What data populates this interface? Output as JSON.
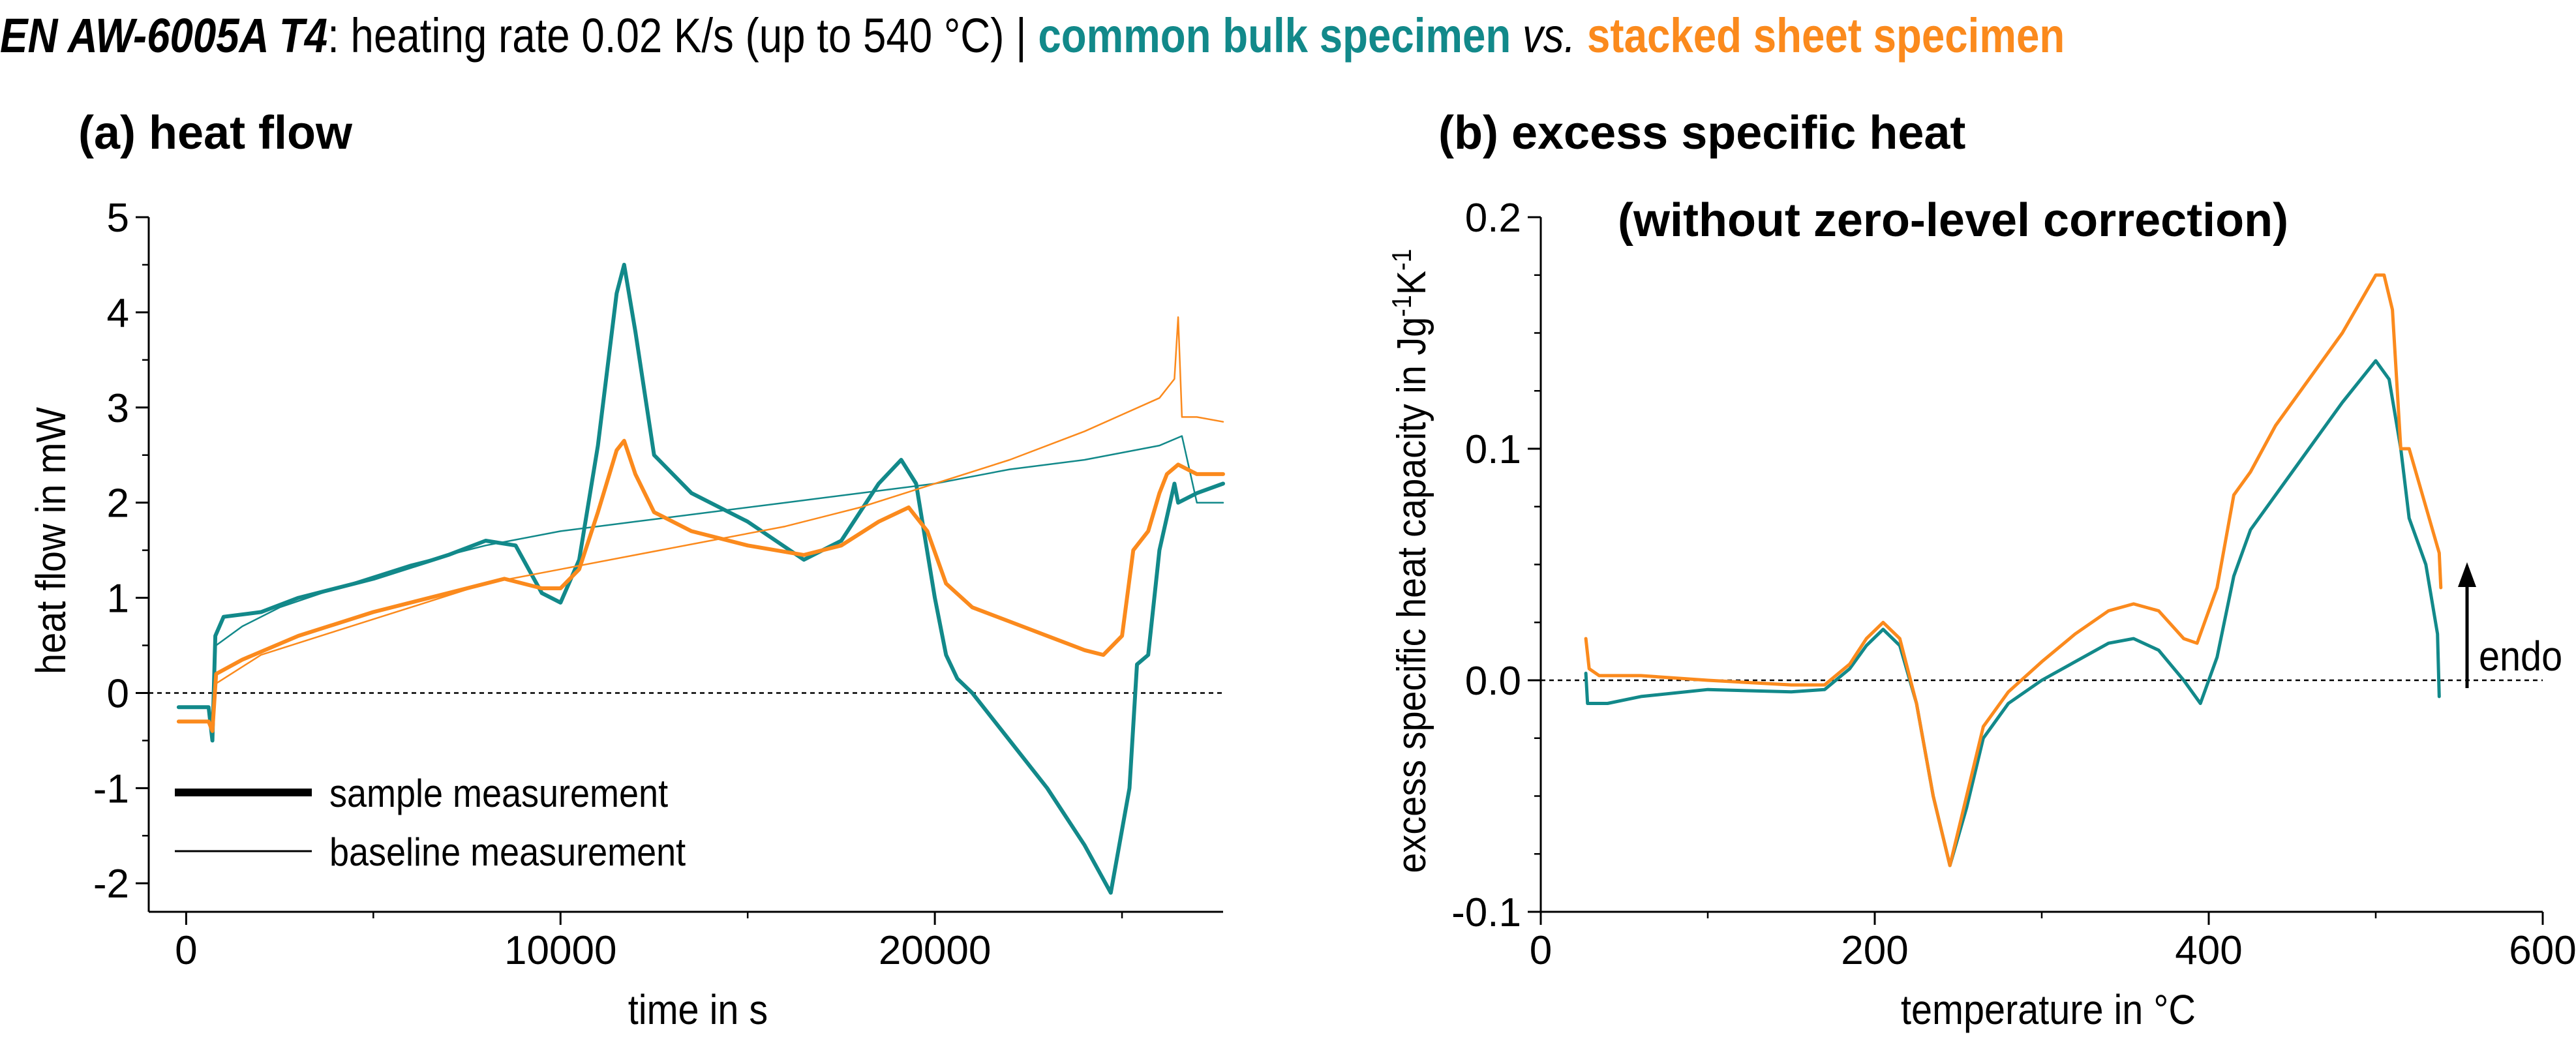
{
  "title": {
    "alloy": "EN AW-6005A T4",
    "desc": ": heating rate 0.02 K/s (up to 540 °C) | ",
    "bulk": "common bulk specimen",
    "vs": " vs. ",
    "sheet": "stacked sheet specimen"
  },
  "colors": {
    "bulk": "#12898a",
    "sheet": "#fb8a1d",
    "zero_line": "#000000"
  },
  "chart_data": [
    {
      "type": "line",
      "panel_title": "(a) heat flow",
      "xlabel": "time in s",
      "ylabel": "heat flow in mW",
      "xlim": [
        -1000,
        27700
      ],
      "ylim": [
        -2.3,
        5
      ],
      "xticks": [
        0,
        10000,
        20000
      ],
      "yticks": [
        -2,
        -1,
        0,
        1,
        2,
        3,
        4,
        5
      ],
      "reference_line": 0,
      "legend": [
        {
          "label": "sample measurement",
          "style": "thick"
        },
        {
          "label": "baseline measurement",
          "style": "thin"
        }
      ],
      "legend_position": "bottom-left",
      "series": [
        {
          "name": "bulk sample measurement",
          "color_key": "bulk",
          "width": 6,
          "points": [
            [
              -200,
              -0.15
            ],
            [
              600,
              -0.15
            ],
            [
              700,
              -0.5
            ],
            [
              780,
              0.6
            ],
            [
              1000,
              0.8
            ],
            [
              2000,
              0.85
            ],
            [
              3000,
              1.0
            ],
            [
              5000,
              1.2
            ],
            [
              7000,
              1.45
            ],
            [
              8000,
              1.6
            ],
            [
              8800,
              1.55
            ],
            [
              9500,
              1.05
            ],
            [
              10000,
              0.95
            ],
            [
              10500,
              1.4
            ],
            [
              11000,
              2.6
            ],
            [
              11500,
              4.2
            ],
            [
              11700,
              4.5
            ],
            [
              12000,
              3.8
            ],
            [
              12500,
              2.5
            ],
            [
              13500,
              2.1
            ],
            [
              15000,
              1.8
            ],
            [
              16500,
              1.4
            ],
            [
              17500,
              1.6
            ],
            [
              18500,
              2.2
            ],
            [
              19100,
              2.45
            ],
            [
              19500,
              2.2
            ],
            [
              20000,
              1.0
            ],
            [
              20300,
              0.4
            ],
            [
              20600,
              0.15
            ],
            [
              21000,
              0.0
            ],
            [
              22000,
              -0.5
            ],
            [
              23000,
              -1.0
            ],
            [
              24000,
              -1.6
            ],
            [
              24700,
              -2.1
            ],
            [
              25200,
              -1.0
            ],
            [
              25400,
              0.3
            ],
            [
              25700,
              0.4
            ],
            [
              26000,
              1.5
            ],
            [
              26400,
              2.2
            ],
            [
              26500,
              2.0
            ],
            [
              27000,
              2.1
            ],
            [
              27700,
              2.2
            ]
          ]
        },
        {
          "name": "bulk baseline measurement",
          "color_key": "bulk",
          "width": 2.5,
          "points": [
            [
              700,
              -0.4
            ],
            [
              800,
              0.5
            ],
            [
              1500,
              0.7
            ],
            [
              2500,
              0.9
            ],
            [
              4000,
              1.1
            ],
            [
              6000,
              1.35
            ],
            [
              8000,
              1.55
            ],
            [
              10000,
              1.7
            ],
            [
              12000,
              1.8
            ],
            [
              14000,
              1.9
            ],
            [
              16000,
              2.0
            ],
            [
              18000,
              2.1
            ],
            [
              20000,
              2.2
            ],
            [
              22000,
              2.35
            ],
            [
              24000,
              2.45
            ],
            [
              26000,
              2.6
            ],
            [
              26600,
              2.7
            ],
            [
              27000,
              2.0
            ],
            [
              27700,
              2.0
            ]
          ]
        },
        {
          "name": "sheet sample measurement",
          "color_key": "sheet",
          "width": 6,
          "points": [
            [
              -200,
              -0.3
            ],
            [
              600,
              -0.3
            ],
            [
              700,
              -0.4
            ],
            [
              800,
              0.2
            ],
            [
              1500,
              0.35
            ],
            [
              3000,
              0.6
            ],
            [
              5000,
              0.85
            ],
            [
              7000,
              1.05
            ],
            [
              8500,
              1.2
            ],
            [
              9500,
              1.1
            ],
            [
              10000,
              1.1
            ],
            [
              10500,
              1.3
            ],
            [
              11000,
              1.9
            ],
            [
              11500,
              2.55
            ],
            [
              11700,
              2.65
            ],
            [
              12000,
              2.3
            ],
            [
              12500,
              1.9
            ],
            [
              13500,
              1.7
            ],
            [
              15000,
              1.55
            ],
            [
              16500,
              1.45
            ],
            [
              17500,
              1.55
            ],
            [
              18500,
              1.8
            ],
            [
              19300,
              1.95
            ],
            [
              19800,
              1.7
            ],
            [
              20300,
              1.15
            ],
            [
              21000,
              0.9
            ],
            [
              22000,
              0.75
            ],
            [
              23000,
              0.6
            ],
            [
              24000,
              0.45
            ],
            [
              24500,
              0.4
            ],
            [
              25000,
              0.6
            ],
            [
              25300,
              1.5
            ],
            [
              25700,
              1.7
            ],
            [
              26000,
              2.1
            ],
            [
              26200,
              2.3
            ],
            [
              26500,
              2.4
            ],
            [
              27000,
              2.3
            ],
            [
              27700,
              2.3
            ]
          ]
        },
        {
          "name": "sheet baseline measurement",
          "color_key": "sheet",
          "width": 2.5,
          "points": [
            [
              700,
              -0.3
            ],
            [
              800,
              0.1
            ],
            [
              2000,
              0.4
            ],
            [
              4000,
              0.65
            ],
            [
              6000,
              0.9
            ],
            [
              8000,
              1.15
            ],
            [
              10000,
              1.3
            ],
            [
              12000,
              1.45
            ],
            [
              14000,
              1.6
            ],
            [
              16000,
              1.75
            ],
            [
              18000,
              1.95
            ],
            [
              20000,
              2.2
            ],
            [
              22000,
              2.45
            ],
            [
              24000,
              2.75
            ],
            [
              26000,
              3.1
            ],
            [
              26400,
              3.3
            ],
            [
              26500,
              3.95
            ],
            [
              26600,
              2.9
            ],
            [
              27000,
              2.9
            ],
            [
              27700,
              2.85
            ]
          ]
        }
      ]
    },
    {
      "type": "line",
      "panel_title": "(b) excess specific heat",
      "panel_subtitle": "(without zero-level correction)",
      "xlabel": "temperature in °C",
      "ylabel_main": "excess specific heat capacity in Jg",
      "ylabel_sup1": "-1",
      "ylabel_mid": "K",
      "ylabel_sup2": "-1",
      "xlim": [
        0,
        600
      ],
      "ylim": [
        -0.1,
        0.2
      ],
      "xticks": [
        0,
        200,
        400,
        600
      ],
      "yticks": [
        "-0.1",
        "0.0",
        "0.1",
        "0.2"
      ],
      "reference_line": 0,
      "annotation": "endo",
      "series": [
        {
          "name": "common bulk specimen",
          "color_key": "bulk",
          "width": 5,
          "points": [
            [
              27,
              0.003
            ],
            [
              28,
              -0.01
            ],
            [
              40,
              -0.01
            ],
            [
              60,
              -0.007
            ],
            [
              100,
              -0.004
            ],
            [
              150,
              -0.005
            ],
            [
              170,
              -0.004
            ],
            [
              185,
              0.005
            ],
            [
              195,
              0.015
            ],
            [
              205,
              0.022
            ],
            [
              215,
              0.015
            ],
            [
              225,
              -0.01
            ],
            [
              235,
              -0.05
            ],
            [
              245,
              -0.08
            ],
            [
              255,
              -0.055
            ],
            [
              265,
              -0.025
            ],
            [
              280,
              -0.01
            ],
            [
              300,
              0.0
            ],
            [
              320,
              0.008
            ],
            [
              340,
              0.016
            ],
            [
              355,
              0.018
            ],
            [
              370,
              0.013
            ],
            [
              385,
              0.0
            ],
            [
              395,
              -0.01
            ],
            [
              405,
              0.01
            ],
            [
              415,
              0.045
            ],
            [
              425,
              0.065
            ],
            [
              440,
              0.08
            ],
            [
              460,
              0.1
            ],
            [
              480,
              0.12
            ],
            [
              500,
              0.138
            ],
            [
              508,
              0.13
            ],
            [
              515,
              0.1
            ],
            [
              520,
              0.07
            ],
            [
              530,
              0.05
            ],
            [
              537,
              0.02
            ],
            [
              538,
              -0.007
            ]
          ]
        },
        {
          "name": "stacked sheet specimen",
          "color_key": "sheet",
          "width": 5,
          "points": [
            [
              27,
              0.018
            ],
            [
              29,
              0.005
            ],
            [
              35,
              0.002
            ],
            [
              60,
              0.002
            ],
            [
              100,
              0.0
            ],
            [
              150,
              -0.002
            ],
            [
              170,
              -0.002
            ],
            [
              185,
              0.007
            ],
            [
              195,
              0.018
            ],
            [
              205,
              0.025
            ],
            [
              215,
              0.018
            ],
            [
              225,
              -0.01
            ],
            [
              235,
              -0.05
            ],
            [
              245,
              -0.08
            ],
            [
              255,
              -0.05
            ],
            [
              265,
              -0.02
            ],
            [
              280,
              -0.005
            ],
            [
              300,
              0.008
            ],
            [
              320,
              0.02
            ],
            [
              340,
              0.03
            ],
            [
              355,
              0.033
            ],
            [
              370,
              0.03
            ],
            [
              385,
              0.018
            ],
            [
              393,
              0.016
            ],
            [
              405,
              0.04
            ],
            [
              415,
              0.08
            ],
            [
              425,
              0.09
            ],
            [
              440,
              0.11
            ],
            [
              460,
              0.13
            ],
            [
              480,
              0.15
            ],
            [
              500,
              0.175
            ],
            [
              505,
              0.175
            ],
            [
              510,
              0.16
            ],
            [
              515,
              0.1
            ],
            [
              520,
              0.1
            ],
            [
              530,
              0.075
            ],
            [
              538,
              0.055
            ],
            [
              539,
              0.04
            ]
          ]
        }
      ]
    }
  ]
}
